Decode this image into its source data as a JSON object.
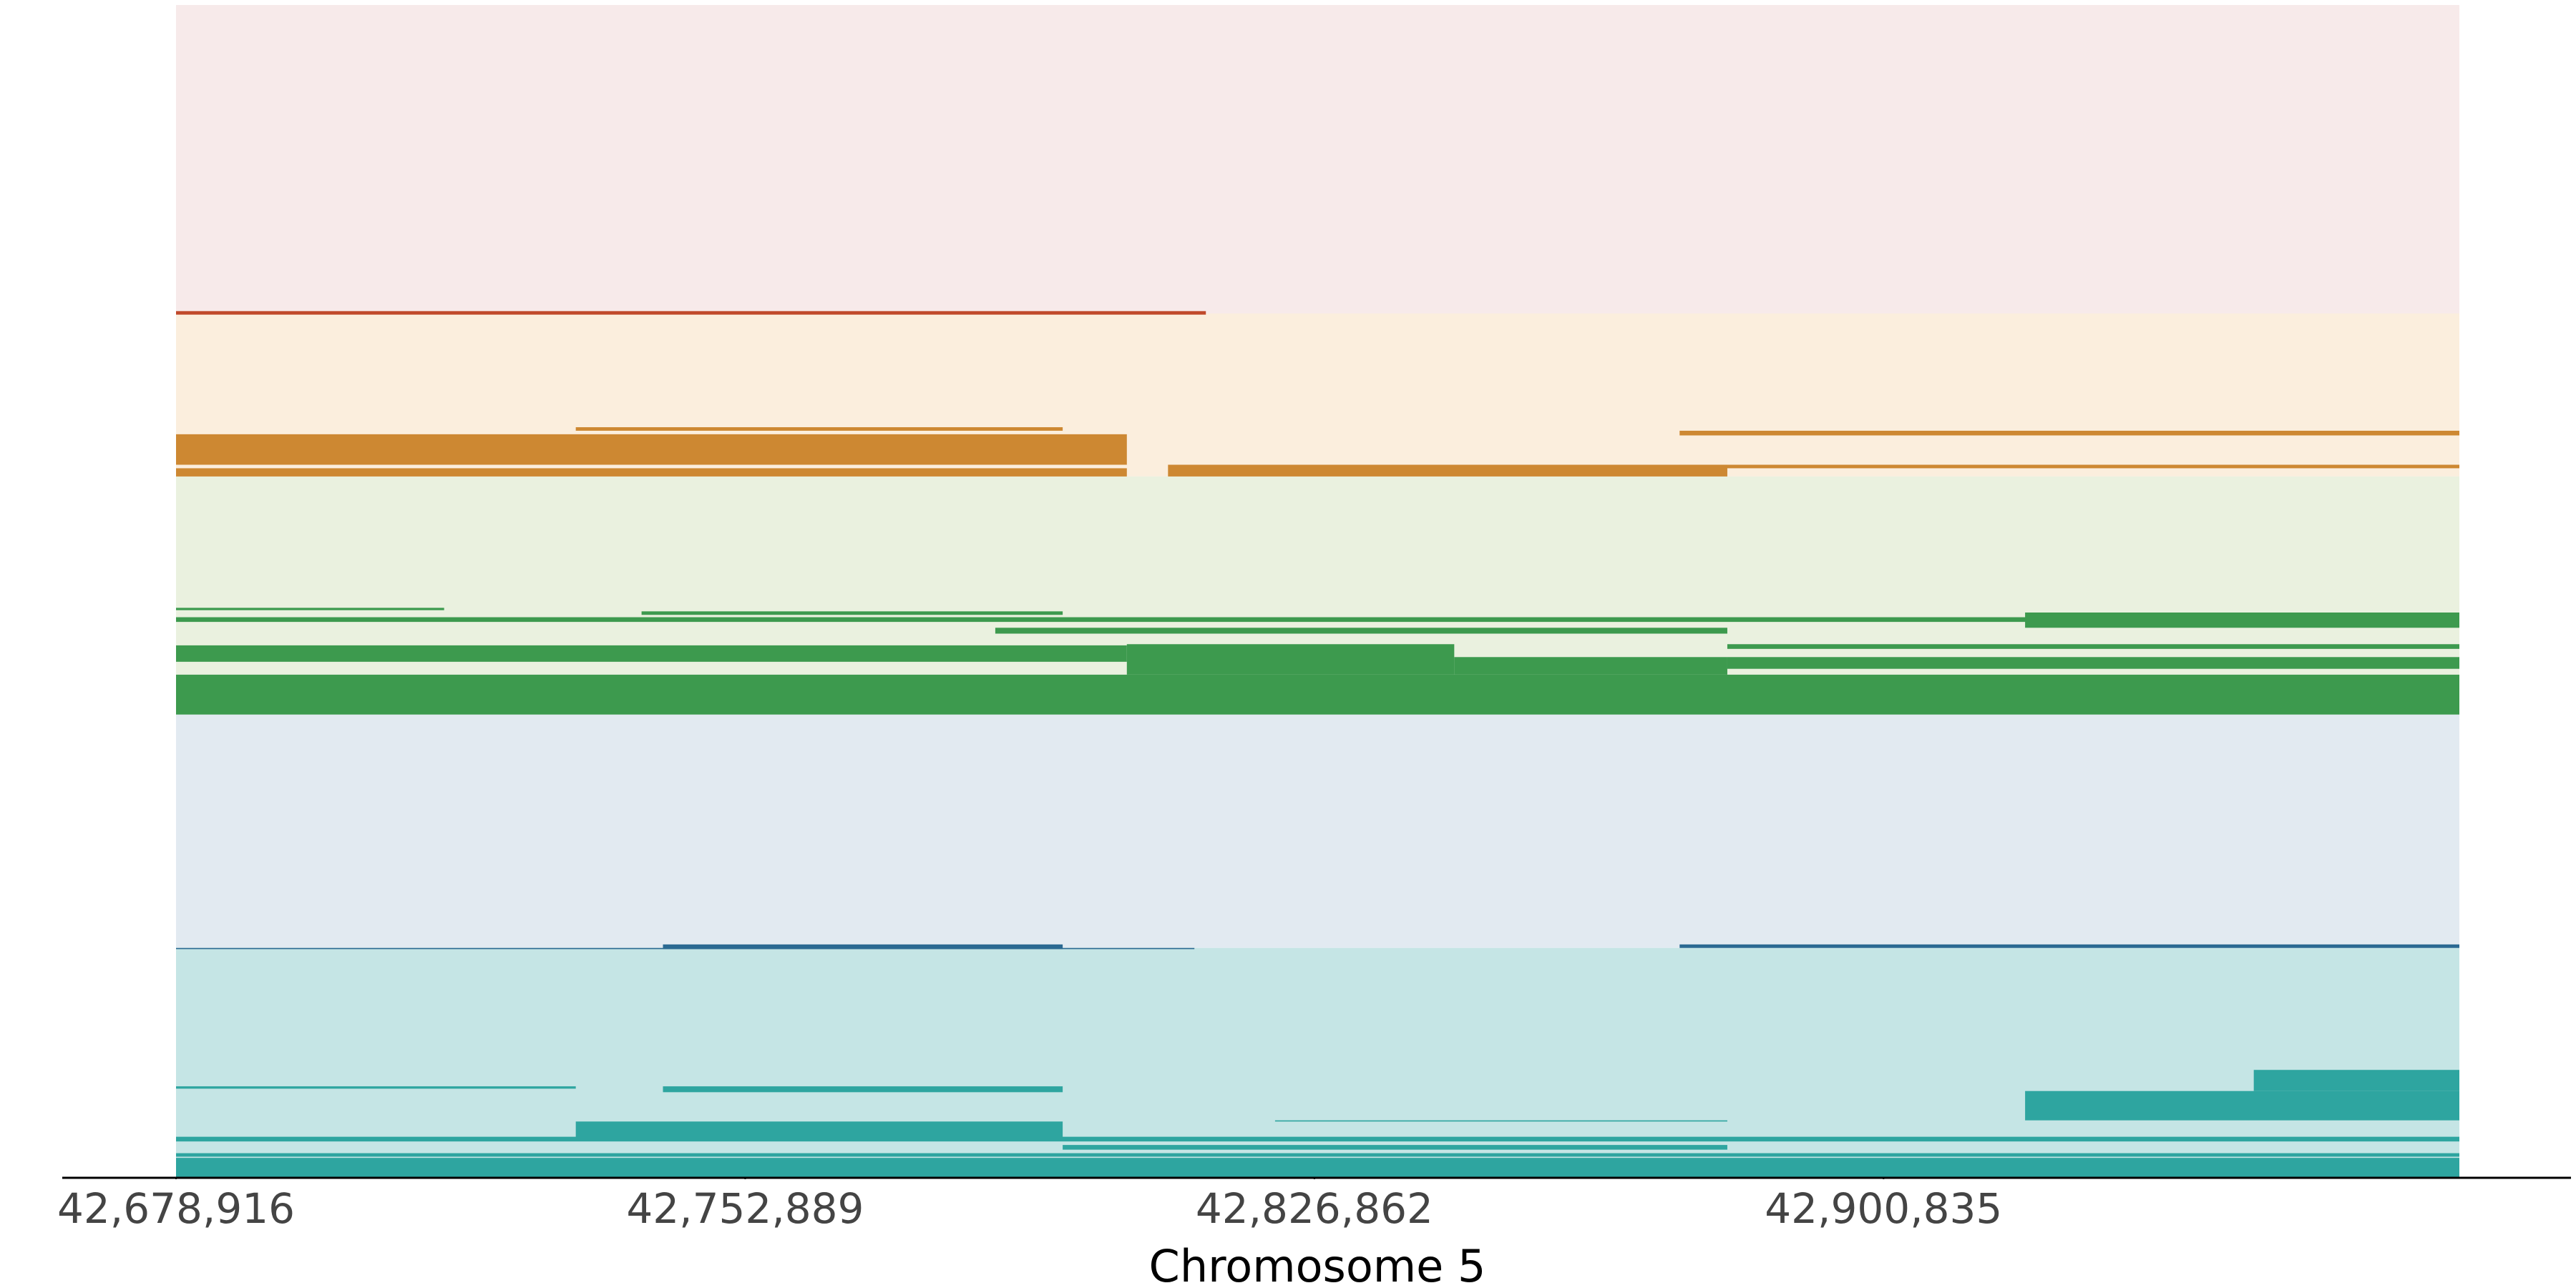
{
  "chart_data": {
    "type": "interval",
    "x_label": "Chromosome 5",
    "xlim": [
      42678916,
      42975670
    ],
    "xticks": [
      {
        "value": 42678916,
        "label": "42,678,916"
      },
      {
        "value": 42752889,
        "label": "42,752,889"
      },
      {
        "value": 42826862,
        "label": "42,826,862"
      },
      {
        "value": 42900835,
        "label": "42,900,835"
      }
    ],
    "ylim": [
      0,
      100
    ],
    "tracks": [
      {
        "background": "#f7eaea",
        "color": "#c0492b",
        "ylim": [
          73.7,
          100
        ],
        "segments": [
          [
            42678916,
            42812760,
            73.9,
            73.6
          ]
        ]
      },
      {
        "background": "#fbeedd",
        "color": "#cd8832",
        "ylim": [
          59.8,
          73.7
        ],
        "segments": [
          [
            42678916,
            42802490,
            63.4,
            60.8
          ],
          [
            42730870,
            42794150,
            64.0,
            63.7
          ],
          [
            42807840,
            42880530,
            60.8,
            59.8
          ],
          [
            42678916,
            42802490,
            60.5,
            59.8
          ],
          [
            42874330,
            42975670,
            63.7,
            63.3
          ],
          [
            42874330,
            42975670,
            60.8,
            60.5
          ]
        ]
      },
      {
        "background": "#eaf1df",
        "color": "#3d9a4e",
        "ylim": [
          39.5,
          59.8
        ],
        "segments": [
          [
            42678916,
            42975670,
            42.9,
            39.5
          ],
          [
            42678916,
            42802490,
            45.4,
            44.0
          ],
          [
            42802490,
            42845040,
            45.5,
            42.9
          ],
          [
            42919230,
            42975670,
            48.2,
            46.9
          ],
          [
            42880530,
            42975670,
            44.4,
            43.4
          ],
          [
            42678916,
            42975670,
            47.8,
            47.4
          ],
          [
            42739420,
            42794150,
            48.3,
            48.0
          ],
          [
            42785390,
            42880530,
            46.9,
            46.4
          ],
          [
            42678916,
            42713760,
            48.6,
            48.4
          ],
          [
            42845040,
            42880530,
            44.4,
            42.9
          ],
          [
            42880530,
            42975670,
            45.5,
            45.1
          ]
        ]
      },
      {
        "background": "#e2eaf1",
        "color": "#2b6a92",
        "ylim": [
          19.6,
          39.5
        ],
        "segments": [
          [
            42678916,
            42811270,
            19.6,
            19.5
          ],
          [
            42742200,
            42794150,
            19.9,
            19.5
          ],
          [
            42874330,
            42975670,
            19.9,
            19.6
          ]
        ]
      },
      {
        "background": "#c5e5e5",
        "color": "#2ea5a0",
        "ylim": [
          0,
          19.6
        ],
        "segments": [
          [
            42678916,
            42975670,
            1.7,
            0
          ],
          [
            42730870,
            42794150,
            4.8,
            3.4
          ],
          [
            42919230,
            42975670,
            7.4,
            4.9
          ],
          [
            42948950,
            42975670,
            9.2,
            7.4
          ],
          [
            42742200,
            42794150,
            7.8,
            7.3
          ],
          [
            42678916,
            42730870,
            7.8,
            7.6
          ],
          [
            42678916,
            42975670,
            3.5,
            3.1
          ],
          [
            42794150,
            42880530,
            2.8,
            2.4
          ],
          [
            42821750,
            42880530,
            4.9,
            4.8
          ],
          [
            42678916,
            42975670,
            2.1,
            1.8
          ]
        ]
      }
    ]
  }
}
